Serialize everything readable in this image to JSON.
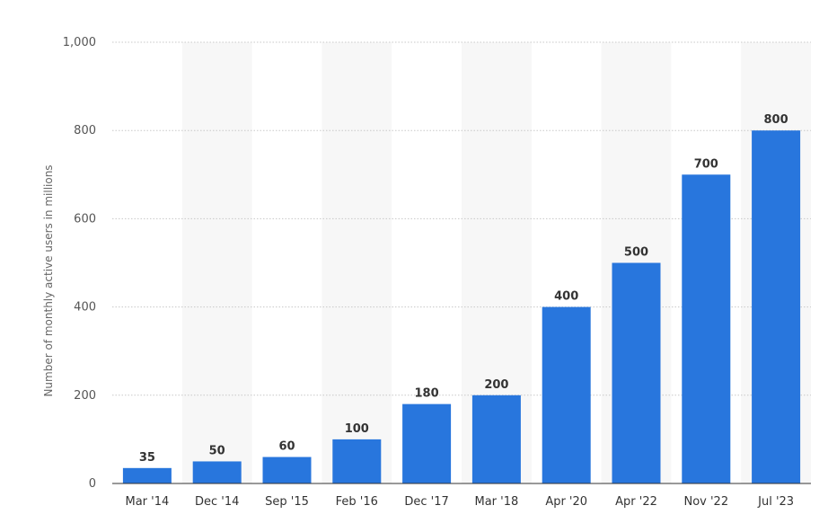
{
  "chart_data": {
    "type": "bar",
    "categories": [
      "Mar '14",
      "Dec '14",
      "Sep '15",
      "Feb '16",
      "Dec '17",
      "Mar '18",
      "Apr '20",
      "Apr '22",
      "Nov '22",
      "Jul '23"
    ],
    "values": [
      35,
      50,
      60,
      100,
      180,
      200,
      400,
      500,
      700,
      800
    ],
    "value_labels": [
      "35",
      "50",
      "60",
      "100",
      "180",
      "200",
      "400",
      "500",
      "700",
      "800"
    ],
    "ylabel": "Number of monthly active users in millions",
    "xlabel": "",
    "ylim": [
      0,
      1000
    ],
    "y_ticks": [
      0,
      200,
      400,
      600,
      800,
      1000
    ],
    "y_tick_labels": [
      "0",
      "200",
      "400",
      "600",
      "800",
      "1,000"
    ],
    "grid": true,
    "legend": false,
    "colors": {
      "bar": "#2876dd",
      "band": "#f7f7f7",
      "grid": "#c8c8c8",
      "axis": "#333333"
    }
  }
}
